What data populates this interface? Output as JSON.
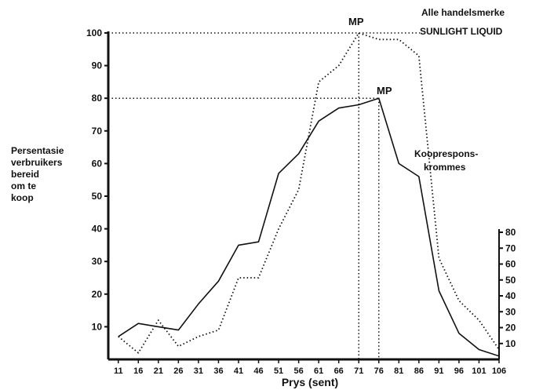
{
  "chart_data": {
    "type": "line",
    "xlabel": "Prys (sent)",
    "ylabel_lines": [
      "Persentasie",
      "verbruikers",
      "bereid",
      "om te",
      "koop"
    ],
    "x_ticks": [
      11,
      16,
      21,
      26,
      31,
      36,
      41,
      46,
      51,
      56,
      61,
      66,
      71,
      76,
      81,
      86,
      91,
      96,
      101,
      106
    ],
    "y_ticks": [
      10,
      20,
      30,
      40,
      50,
      60,
      70,
      80,
      90,
      100
    ],
    "y_ticks_right": [
      10,
      20,
      30,
      40,
      50,
      60,
      70,
      80
    ],
    "ylim": [
      0,
      100
    ],
    "xlim": [
      8.5,
      106
    ],
    "series": [
      {
        "name": "Alle handelsmerke",
        "style": "solid",
        "x": [
          11,
          16,
          21,
          26,
          31,
          36,
          41,
          46,
          51,
          56,
          61,
          66,
          71,
          76,
          81,
          86,
          91,
          96,
          101,
          106
        ],
        "y": [
          7,
          11,
          10,
          9,
          17,
          24,
          35,
          36,
          57,
          63,
          73,
          77,
          78,
          80,
          60,
          56,
          21,
          8,
          3,
          1
        ]
      },
      {
        "name": "SUNLIGHT LIQUID",
        "style": "dotted",
        "x": [
          11,
          16,
          21,
          26,
          31,
          36,
          41,
          46,
          51,
          56,
          61,
          66,
          71,
          76,
          81,
          86,
          91,
          96,
          101,
          106
        ],
        "y": [
          7,
          2,
          12,
          4,
          7,
          9,
          25,
          25,
          40,
          52,
          85,
          90,
          100,
          98,
          98,
          93,
          31,
          18,
          12,
          3
        ]
      }
    ],
    "annotations": {
      "mp_label": "MP",
      "curves_label_lines": [
        "Kooprespons-",
        "krommes"
      ]
    },
    "mp_points": [
      {
        "x": 71,
        "y": 100
      },
      {
        "x": 76,
        "y": 80
      }
    ]
  }
}
